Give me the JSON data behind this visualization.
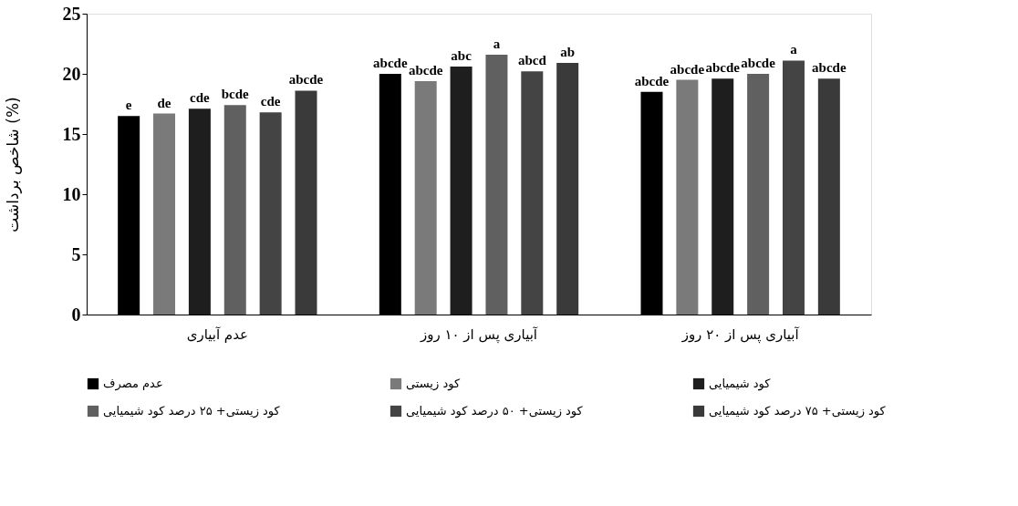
{
  "chart_data": {
    "type": "bar",
    "ylabel": "شاخص برداشت (%)",
    "categories": [
      "عدم آبیاری",
      "آبیاری پس از ۱۰ روز",
      "آبیاری پس از ۲۰ روز"
    ],
    "ylim": [
      0,
      25
    ],
    "yticks": [
      0,
      5,
      10,
      15,
      20,
      25
    ],
    "grid": false,
    "legend": "bottom",
    "series": [
      {
        "name": "عدم مصرف",
        "color": "#000000",
        "values": [
          16.5,
          20.0,
          18.5
        ],
        "value_labels": [
          "e",
          "abcde",
          "abcde"
        ]
      },
      {
        "name": "کود زیستی",
        "color": "#7a7a7a",
        "values": [
          16.7,
          19.4,
          19.5
        ],
        "value_labels": [
          "de",
          "abcde",
          "abcde"
        ]
      },
      {
        "name": "کود شیمیایی",
        "color": "#1e1e1e",
        "values": [
          17.1,
          20.6,
          19.6
        ],
        "value_labels": [
          "cde",
          "abc",
          "abcde"
        ]
      },
      {
        "name": "کود زیستی+ ۲۵ درصد کود شیمیایی",
        "color": "#606060",
        "values": [
          17.4,
          21.6,
          20.0
        ],
        "value_labels": [
          "bcde",
          "a",
          "abcde"
        ]
      },
      {
        "name": "کود زیستی+ ۵۰ درصد کود شیمیایی",
        "color": "#444444",
        "values": [
          16.8,
          20.2,
          21.1
        ],
        "value_labels": [
          "cde",
          "abcd",
          "a"
        ]
      },
      {
        "name": "کود زیستی+ ۷۵ درصد کود شیمیایی",
        "color": "#3a3a3a",
        "values": [
          18.6,
          20.9,
          19.6
        ],
        "value_labels": [
          "abcde",
          "ab",
          "abcde"
        ]
      }
    ]
  }
}
